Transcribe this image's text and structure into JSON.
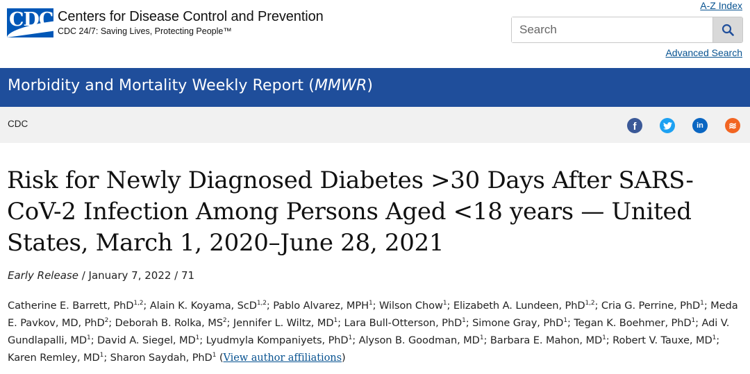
{
  "header": {
    "logo_letters": "CDC",
    "org_name": "Centers for Disease Control and Prevention",
    "tagline": "CDC 24/7: Saving Lives, Protecting People™",
    "az_index": "A-Z Index",
    "search_placeholder": "Search",
    "advanced_search": "Advanced Search",
    "search_icon": "magnifier-icon"
  },
  "title_bar": {
    "text_prefix": "Morbidity and Mortality Weekly Report (",
    "text_abbrev": "MMWR",
    "text_suffix": ")"
  },
  "breadcrumb": {
    "item": "CDC"
  },
  "social": [
    {
      "name": "facebook",
      "glyph": "f"
    },
    {
      "name": "twitter",
      "glyph": "t"
    },
    {
      "name": "linkedin",
      "glyph": "in"
    },
    {
      "name": "syndicate",
      "glyph": "≋"
    }
  ],
  "article": {
    "title": "Risk for Newly Diagnosed Diabetes >30 Days After SARS-CoV-2 Infection Among Persons Aged <18 years — United States, March 1, 2020–June 28, 2021",
    "release_label": "Early Release",
    "release_rest": " / January 7, 2022 / 71",
    "authors": [
      {
        "name": "Catherine E. Barrett, PhD",
        "sup": "1,2"
      },
      {
        "name": "Alain K. Koyama, ScD",
        "sup": "1,2"
      },
      {
        "name": "Pablo Alvarez, MPH",
        "sup": "1"
      },
      {
        "name": "Wilson Chow",
        "sup": "1"
      },
      {
        "name": "Elizabeth A. Lundeen, PhD",
        "sup": "1,2"
      },
      {
        "name": "Cria G. Perrine, PhD",
        "sup": "1"
      },
      {
        "name": "Meda E. Pavkov, MD, PhD",
        "sup": "2"
      },
      {
        "name": "Deborah B. Rolka, MS",
        "sup": "2"
      },
      {
        "name": "Jennifer L. Wiltz, MD",
        "sup": "1"
      },
      {
        "name": "Lara Bull-Otterson, PhD",
        "sup": "1"
      },
      {
        "name": "Simone Gray, PhD",
        "sup": "1"
      },
      {
        "name": "Tegan K. Boehmer, PhD",
        "sup": "1"
      },
      {
        "name": "Adi V. Gundlapalli, MD",
        "sup": "1"
      },
      {
        "name": "David A. Siegel, MD",
        "sup": "1"
      },
      {
        "name": "Lyudmyla Kompaniyets, PhD",
        "sup": "1"
      },
      {
        "name": "Alyson B. Goodman, MD",
        "sup": "1"
      },
      {
        "name": "Barbara E. Mahon, MD",
        "sup": "1"
      },
      {
        "name": "Robert V. Tauxe, MD",
        "sup": "1"
      },
      {
        "name": "Karen Remley, MD",
        "sup": "1"
      },
      {
        "name": "Sharon Saydah, PhD",
        "sup": "1"
      }
    ],
    "affiliations_link": "View author affiliations"
  }
}
